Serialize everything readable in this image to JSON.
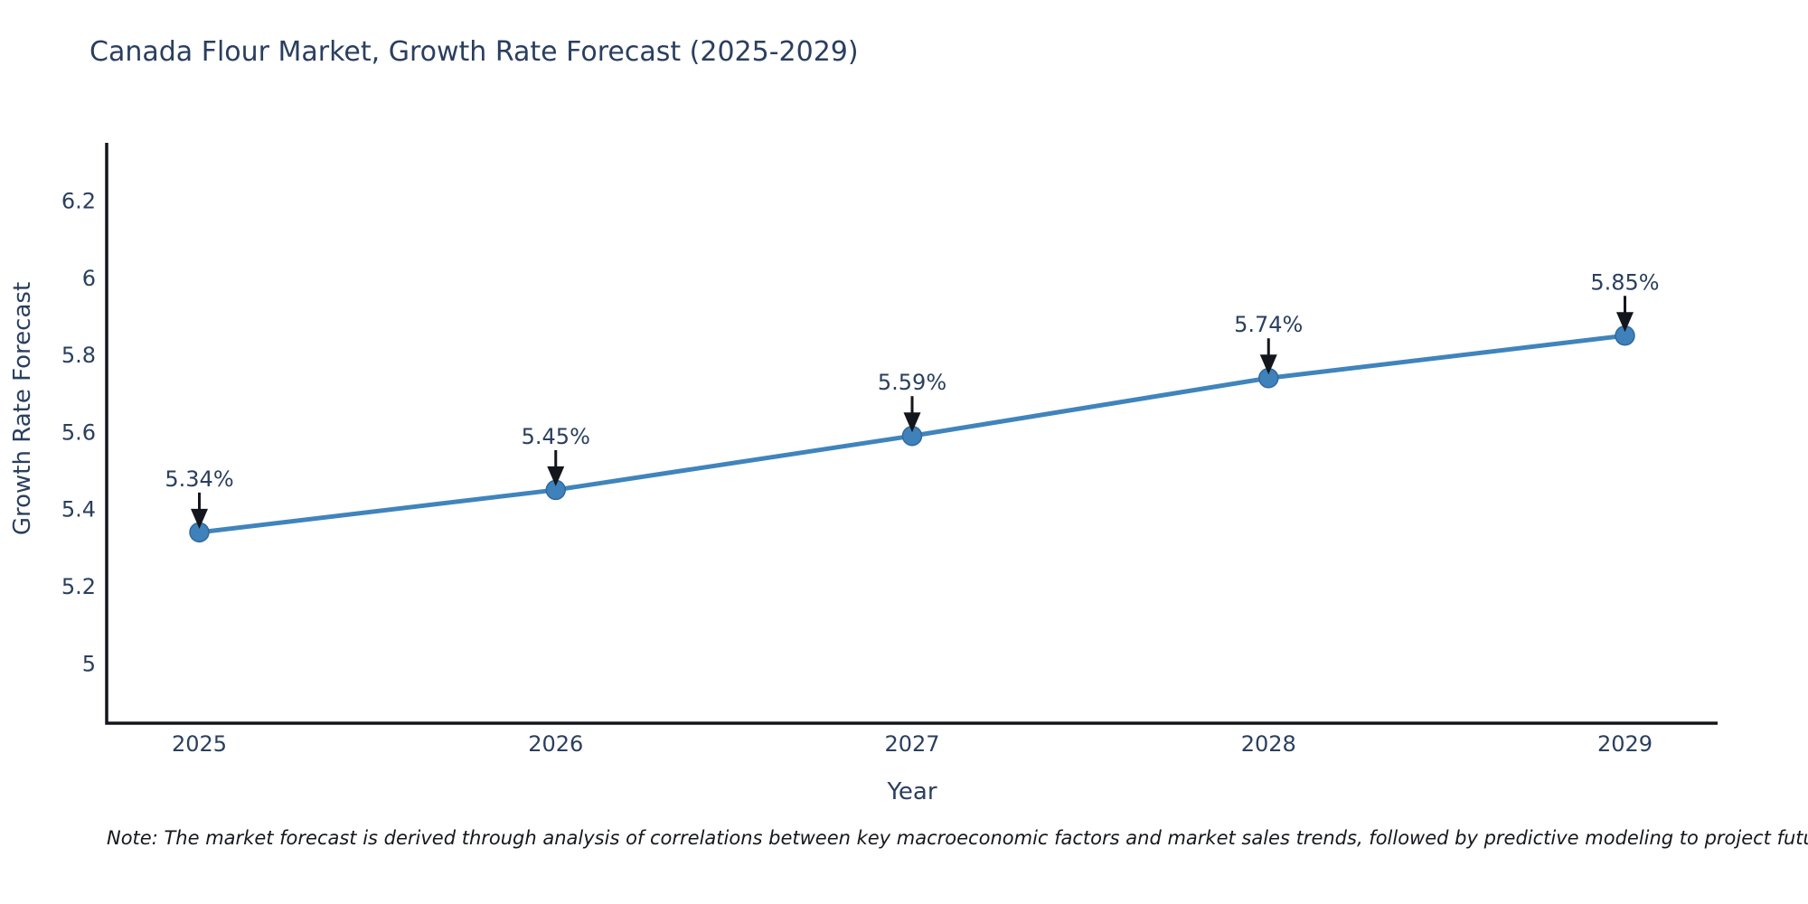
{
  "title": "Canada Flour Market, Growth Rate Forecast (2025-2029)",
  "note": "Note: The market forecast is derived through analysis of correlations between key macroeconomic factors and market sales trends, followed by predictive modeling to project future sales",
  "chart_data": {
    "type": "line",
    "title": "Canada Flour Market, Growth Rate Forecast (2025-2029)",
    "xlabel": "Year",
    "ylabel": "Growth Rate Forecast",
    "x": [
      2025,
      2026,
      2027,
      2028,
      2029
    ],
    "values": [
      5.34,
      5.45,
      5.59,
      5.74,
      5.85
    ],
    "point_labels": [
      "5.34%",
      "5.45%",
      "5.59%",
      "5.74%",
      "5.85%"
    ],
    "xtick_labels": [
      "2025",
      "2026",
      "2027",
      "2028",
      "2029"
    ],
    "ytick_values": [
      5,
      5.2,
      5.4,
      5.6,
      5.8,
      6,
      6.2
    ],
    "ytick_labels": [
      "5",
      "5.2",
      "5.4",
      "5.6",
      "5.8",
      "6",
      "6.2"
    ],
    "xlim": [
      2024.74,
      2029.26
    ],
    "ylim": [
      4.845,
      6.35
    ],
    "grid": false,
    "legend": "none",
    "annotations_style": "value label above point with downward black arrow",
    "colors": {
      "line": "#4084bc",
      "marker_fill": "#3f81ba",
      "marker_edge": "#30699e",
      "text": "#2a3f5f",
      "arrow": "#13161c",
      "spine": "#13161c",
      "background": "#ffffff"
    }
  }
}
